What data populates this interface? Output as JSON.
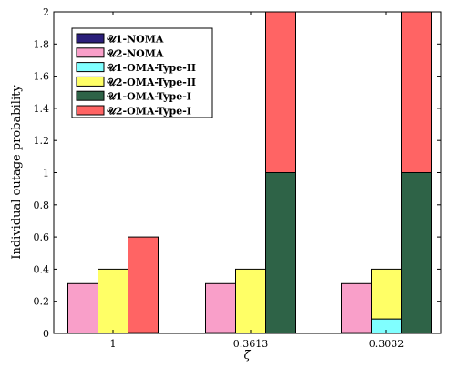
{
  "chart_data": {
    "type": "bar",
    "mode": "grouped-stacked",
    "xlabel": "ζ̄",
    "ylabel": "Individual outage probability",
    "ylim": [
      0,
      2
    ],
    "yticks": [
      0,
      0.2,
      0.4,
      0.6,
      0.8,
      1,
      1.2,
      1.4,
      1.6,
      1.8,
      2
    ],
    "ytick_labels": [
      "0",
      "0.2",
      "0.4",
      "0.6",
      "0.8",
      "1",
      "1.2",
      "1.4",
      "1.6",
      "1.8",
      "2"
    ],
    "categories": [
      "1",
      "0.3613",
      "0.3032"
    ],
    "grid": false,
    "legend_position": "top-left",
    "groups": [
      {
        "name": "NOMA",
        "stack": [
          {
            "series": "𝒰1-NOMA",
            "color": "#2b1f7a",
            "values": [
              0.0,
              0.005,
              0.005
            ]
          },
          {
            "series": "𝒰2-NOMA",
            "color": "#f99fc9",
            "values": [
              0.31,
              0.305,
              0.305
            ]
          }
        ]
      },
      {
        "name": "OMA-Type-II",
        "stack": [
          {
            "series": "𝒰1-OMA-Type-II",
            "color": "#80ffff",
            "values": [
              0.0,
              0.0,
              0.09
            ]
          },
          {
            "series": "𝒰2-OMA-Type-II",
            "color": "#ffff66",
            "values": [
              0.4,
              0.4,
              0.31
            ]
          }
        ]
      },
      {
        "name": "OMA-Type-I",
        "stack": [
          {
            "series": "𝒰1-OMA-Type-I",
            "color": "#2e6347",
            "values": [
              0.005,
              1.0,
              1.0
            ]
          },
          {
            "series": "𝒰2-OMA-Type-I",
            "color": "#ff6464",
            "values": [
              0.595,
              1.0,
              1.0
            ]
          }
        ]
      }
    ],
    "legend": [
      {
        "label": "𝒰1-NOMA",
        "color": "#2b1f7a"
      },
      {
        "label": "𝒰2-NOMA",
        "color": "#f99fc9"
      },
      {
        "label": "𝒰1-OMA-Type-II",
        "color": "#80ffff"
      },
      {
        "label": "𝒰2-OMA-Type-II",
        "color": "#ffff66"
      },
      {
        "label": "𝒰1-OMA-Type-I",
        "color": "#2e6347"
      },
      {
        "label": "𝒰2-OMA-Type-I",
        "color": "#ff6464"
      }
    ]
  }
}
